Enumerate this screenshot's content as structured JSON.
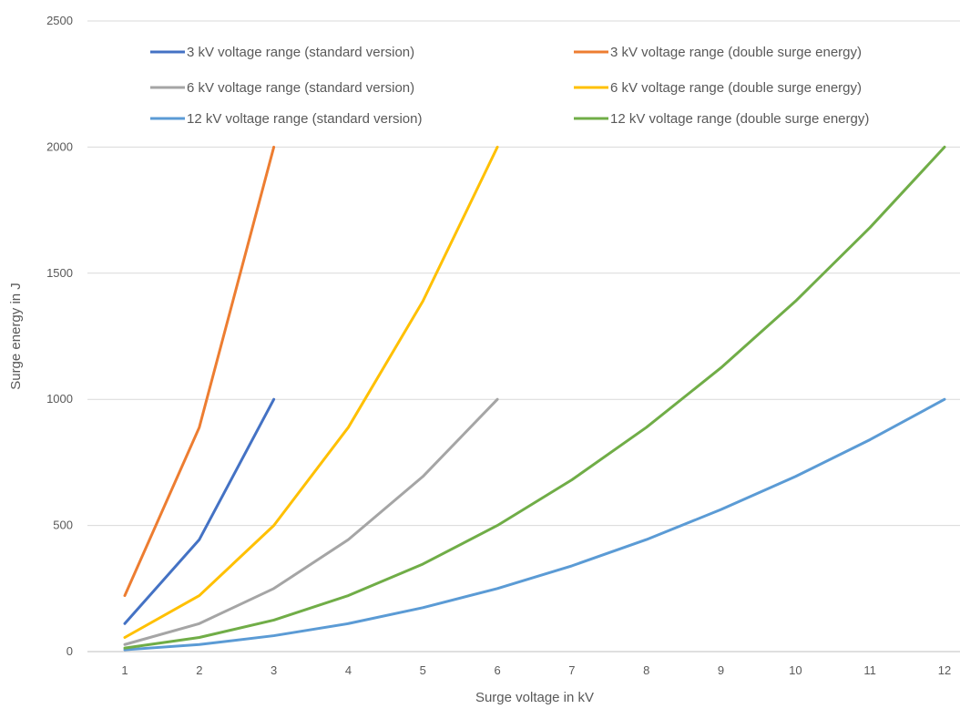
{
  "chart_data": {
    "type": "line",
    "title": "",
    "xlabel": "Surge voltage in kV",
    "ylabel": "Surge energy in J",
    "x_categories": [
      "1",
      "2",
      "3",
      "4",
      "5",
      "6",
      "7",
      "8",
      "9",
      "10",
      "11",
      "12"
    ],
    "xlim": [
      1,
      12
    ],
    "ylim": [
      0,
      2500
    ],
    "yticks": [
      0,
      500,
      1000,
      1500,
      2000,
      2500
    ],
    "y_tick_labels": [
      "0",
      "500",
      "1000",
      "1500",
      "2000",
      "2500"
    ],
    "grid": "horizontal",
    "legend_position": "top",
    "series": [
      {
        "name": "3 kV voltage range (standard version)",
        "color": "#4472C4",
        "x": [
          1,
          2,
          3
        ],
        "y": [
          111,
          444,
          1000
        ]
      },
      {
        "name": "3 kV voltage range (double surge energy)",
        "color": "#ED7D31",
        "x": [
          1,
          2,
          3
        ],
        "y": [
          222,
          889,
          2000
        ]
      },
      {
        "name": "6 kV voltage range (standard version)",
        "color": "#A5A5A5",
        "x": [
          1,
          2,
          3,
          4,
          5,
          6
        ],
        "y": [
          28,
          111,
          250,
          444,
          694,
          1000
        ]
      },
      {
        "name": "6 kV voltage range (double surge energy)",
        "color": "#FFC000",
        "x": [
          1,
          2,
          3,
          4,
          5,
          6
        ],
        "y": [
          56,
          222,
          500,
          889,
          1389,
          2000
        ]
      },
      {
        "name": "12 kV voltage range (standard version)",
        "color": "#5B9BD5",
        "x": [
          1,
          2,
          3,
          4,
          5,
          6,
          7,
          8,
          9,
          10,
          11,
          12
        ],
        "y": [
          7,
          28,
          63,
          111,
          174,
          250,
          340,
          444,
          563,
          694,
          840,
          1000
        ]
      },
      {
        "name": "12 kV voltage range (double surge energy)",
        "color": "#70AD47",
        "x": [
          1,
          2,
          3,
          4,
          5,
          6,
          7,
          8,
          9,
          10,
          11,
          12
        ],
        "y": [
          14,
          56,
          125,
          222,
          347,
          500,
          681,
          889,
          1125,
          1389,
          1681,
          2000
        ]
      }
    ]
  }
}
